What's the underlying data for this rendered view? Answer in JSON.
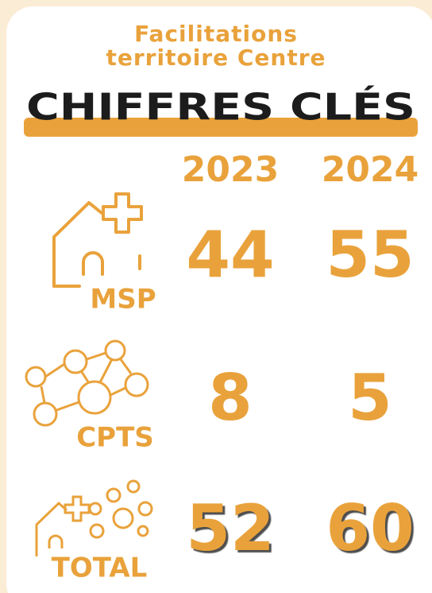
{
  "header": {
    "title_lines": [
      "Facilitations",
      "territoire Centre"
    ],
    "heading": "CHIFFRES CLÉS"
  },
  "table": {
    "columns": [
      "2023",
      "2024"
    ],
    "rows": [
      {
        "label": "MSP",
        "values": [
          44,
          55
        ]
      },
      {
        "label": "CPTS",
        "values": [
          8,
          5
        ]
      },
      {
        "label": "TOTAL",
        "values": [
          52,
          60
        ]
      }
    ]
  }
}
